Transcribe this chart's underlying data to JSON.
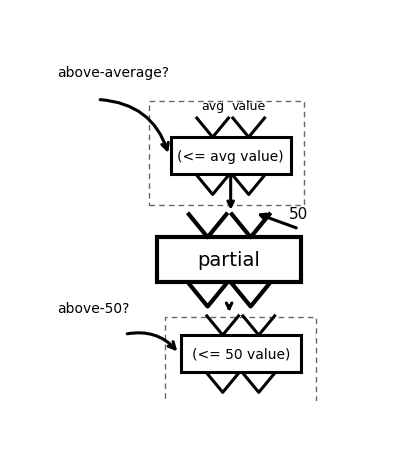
{
  "bg_color": "#ffffff",
  "label_above_average": "above-average?",
  "label_above_50": "above-50?",
  "label_50": "50",
  "label_partial": "partial",
  "label_func1": "(<= avg value)",
  "label_func2": "(<= 50 value)",
  "label_avg": "avg",
  "label_value": "value",
  "solid_lw": 2.2,
  "dashed_lw": 1.0,
  "text_color": "#000000",
  "box_edge_color": "#000000",
  "dashed_edge_color": "#666666",
  "notch_lw": 2.2,
  "partial_lw": 3.0
}
